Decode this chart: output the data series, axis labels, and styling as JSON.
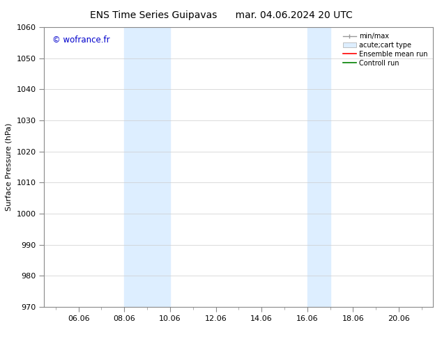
{
  "title_left": "ENS Time Series Guipavas",
  "title_right": "mar. 04.06.2024 20 UTC",
  "ylabel": "Surface Pressure (hPa)",
  "ylim": [
    970,
    1060
  ],
  "yticks": [
    970,
    980,
    990,
    1000,
    1010,
    1020,
    1030,
    1040,
    1050,
    1060
  ],
  "xtick_labels": [
    "06.06",
    "08.06",
    "10.06",
    "12.06",
    "14.06",
    "16.06",
    "18.06",
    "20.06"
  ],
  "xtick_positions": [
    2,
    4,
    6,
    8,
    10,
    12,
    14,
    16
  ],
  "x_min": 0.5,
  "x_max": 17.5,
  "shaded_bands": [
    {
      "x_start": 4,
      "x_end": 6
    },
    {
      "x_start": 12,
      "x_end": 13
    }
  ],
  "watermark_text": "© wofrance.fr",
  "watermark_color": "#0000cc",
  "background_color": "#ffffff",
  "plot_bg_color": "#ffffff",
  "grid_color": "#cccccc",
  "band_color": "#ddeeff",
  "legend_items": [
    {
      "label": "min/max"
    },
    {
      "label": "acute;cart type"
    },
    {
      "label": "Ensemble mean run"
    },
    {
      "label": "Controll run"
    }
  ],
  "title_fontsize": 10,
  "label_fontsize": 8,
  "tick_fontsize": 8,
  "legend_fontsize": 7
}
